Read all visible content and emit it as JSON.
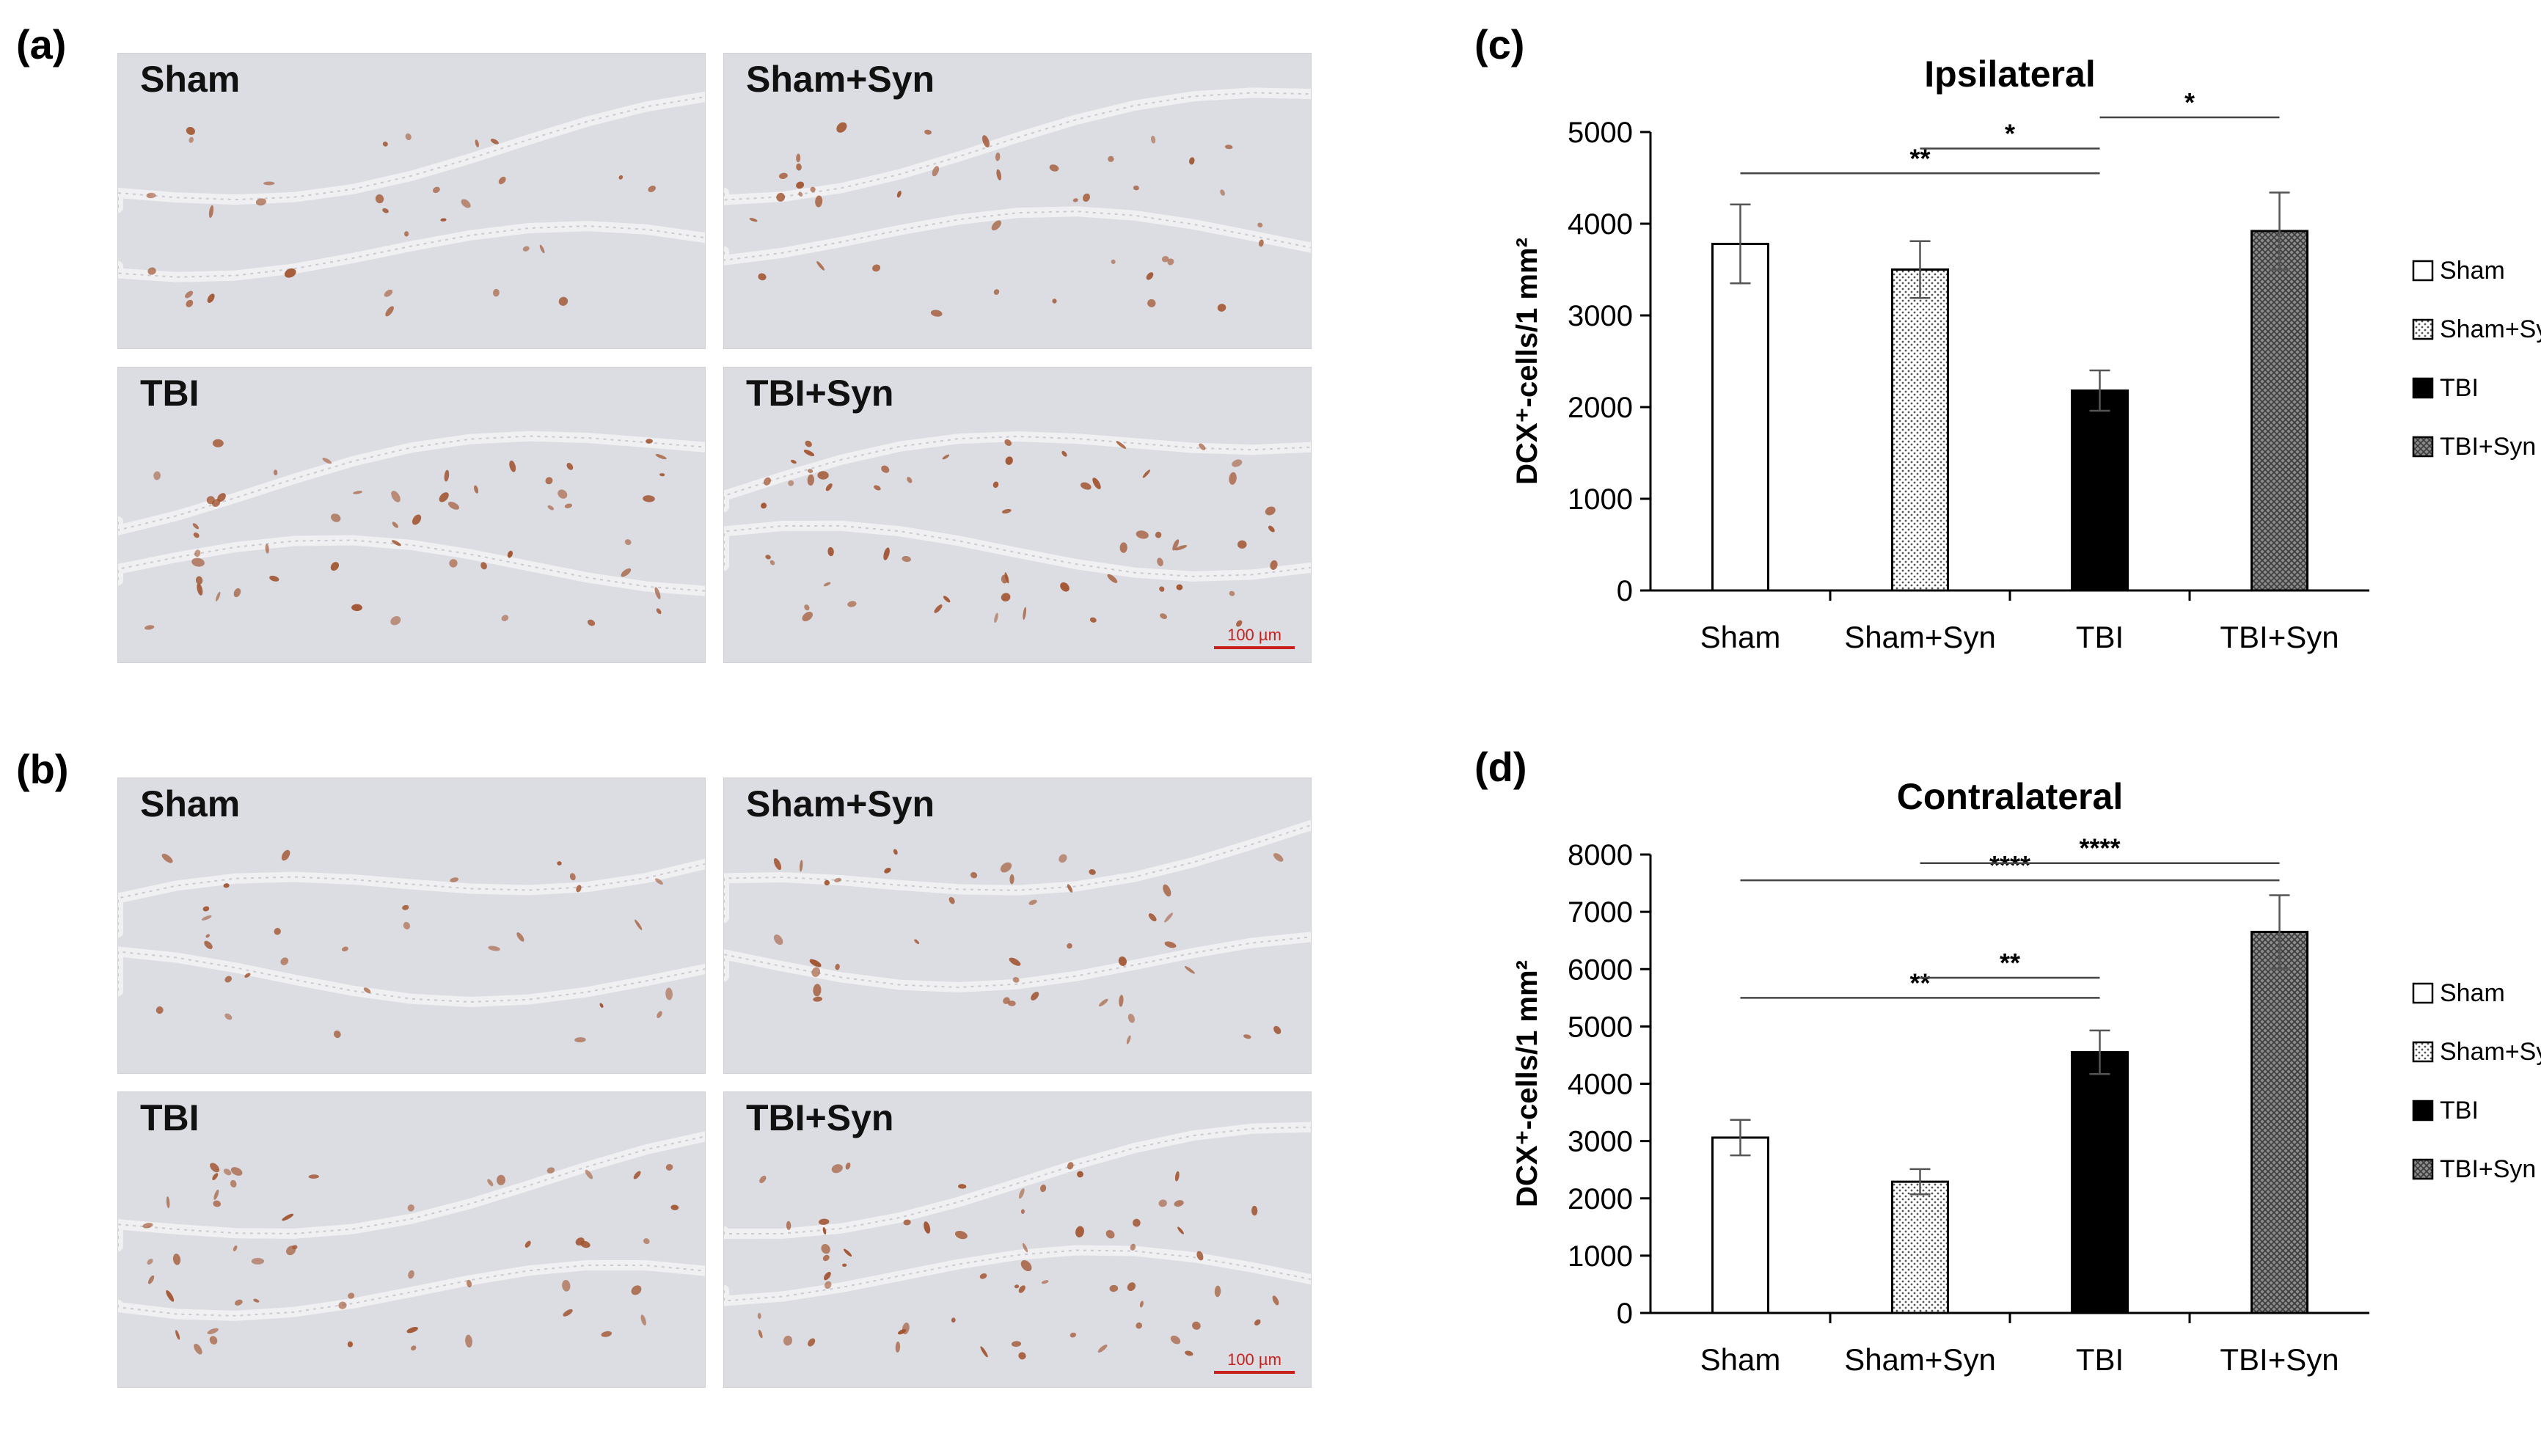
{
  "panels": {
    "a": {
      "label": "(a)",
      "images": [
        "Sham",
        "Sham+Syn",
        "TBI",
        "TBI+Syn"
      ],
      "scalebar": "100 µm"
    },
    "b": {
      "label": "(b)",
      "images": [
        "Sham",
        "Sham+Syn",
        "TBI",
        "TBI+Syn"
      ],
      "scalebar": "100 µm"
    }
  },
  "chart_data": [
    {
      "panel_label": "(c)",
      "type": "bar",
      "title": "Ipsilateral",
      "ylabel": "DCX⁺-cells/1 mm²",
      "categories": [
        "Sham",
        "Sham+Syn",
        "TBI",
        "TBI+Syn"
      ],
      "values": [
        3780,
        3500,
        2180,
        3920
      ],
      "errors": [
        430,
        310,
        220,
        420
      ],
      "ylim": [
        0,
        5000
      ],
      "yticks": [
        0,
        1000,
        2000,
        3000,
        4000,
        5000
      ],
      "legend": [
        "Sham",
        "Sham+Syn",
        "TBI",
        "TBI+Syn"
      ],
      "legend_position": "right",
      "significance": [
        {
          "from": 0,
          "to": 2,
          "label": "**",
          "y": 4550
        },
        {
          "from": 1,
          "to": 2,
          "label": "*",
          "y": 4820
        },
        {
          "from": 2,
          "to": 3,
          "label": "*",
          "y": 5160
        }
      ],
      "grid": false
    },
    {
      "panel_label": "(d)",
      "type": "bar",
      "title": "Contralateral",
      "ylabel": "DCX⁺-cells/1 mm²",
      "categories": [
        "Sham",
        "Sham+Syn",
        "TBI",
        "TBI+Syn"
      ],
      "values": [
        3060,
        2290,
        4550,
        6650
      ],
      "errors": [
        310,
        220,
        380,
        640
      ],
      "ylim": [
        0,
        8000
      ],
      "yticks": [
        0,
        1000,
        2000,
        3000,
        4000,
        5000,
        6000,
        7000,
        8000
      ],
      "legend": [
        "Sham",
        "Sham+Syn",
        "TBI",
        "TBI+Syn"
      ],
      "legend_position": "right",
      "significance": [
        {
          "from": 0,
          "to": 2,
          "label": "**",
          "y": 5500
        },
        {
          "from": 1,
          "to": 2,
          "label": "**",
          "y": 5850
        },
        {
          "from": 0,
          "to": 3,
          "label": "****",
          "y": 7550
        },
        {
          "from": 1,
          "to": 3,
          "label": "****",
          "y": 7850
        }
      ],
      "grid": false
    }
  ],
  "colors": {
    "stain": "#a0522d",
    "tissue": "#dcdde3",
    "scalebar": "#c8201c"
  }
}
